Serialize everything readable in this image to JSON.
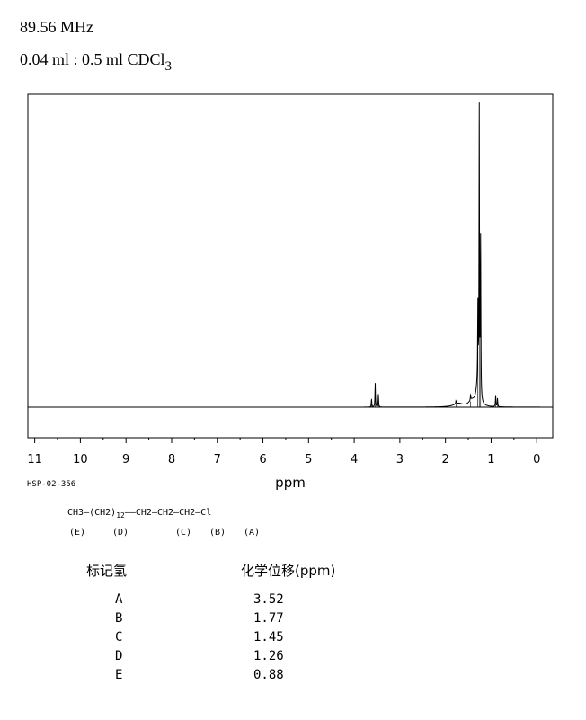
{
  "header": {
    "frequency": "89.56 MHz",
    "sample_main": "0.04 ml : 0.5 ml CDCl",
    "sample_sub": "3"
  },
  "chart_data": {
    "type": "line",
    "title": "",
    "xlabel": "ppm",
    "ylabel": "",
    "xlim": [
      11,
      0
    ],
    "x_ticks": [
      11,
      10,
      9,
      8,
      7,
      6,
      5,
      4,
      3,
      2,
      1,
      0
    ],
    "x_tick_labels": [
      "11",
      "10",
      "9",
      "8",
      "7",
      "6",
      "5",
      "4",
      "3",
      "2",
      "1",
      "0"
    ],
    "grid": false,
    "peaks": [
      {
        "ppm": 3.62,
        "height": 0.03
      },
      {
        "ppm": 3.54,
        "height": 0.085
      },
      {
        "ppm": 3.47,
        "height": 0.045
      },
      {
        "ppm": 1.77,
        "height": 0.012
      },
      {
        "ppm": 1.45,
        "height": 0.02
      },
      {
        "ppm": 1.29,
        "height": 0.28
      },
      {
        "ppm": 1.26,
        "height": 1.0
      },
      {
        "ppm": 1.23,
        "height": 0.55
      },
      {
        "ppm": 0.9,
        "height": 0.04
      },
      {
        "ppm": 0.86,
        "height": 0.03
      }
    ]
  },
  "spectrum_code": "HSP-02-356",
  "structure": {
    "groups": [
      "CH3",
      "(CH2)",
      "CH2",
      "CH2",
      "CH2",
      "Cl"
    ],
    "repeat": "12",
    "labels": [
      "(E)",
      "(D)",
      "(C)",
      "(B)",
      "(A)"
    ]
  },
  "table": {
    "header_label": "标记氢",
    "header_shift": "化学位移(ppm)",
    "rows": [
      {
        "label": "A",
        "shift": "3.52"
      },
      {
        "label": "B",
        "shift": "1.77"
      },
      {
        "label": "C",
        "shift": "1.45"
      },
      {
        "label": "D",
        "shift": "1.26"
      },
      {
        "label": "E",
        "shift": "0.88"
      }
    ]
  }
}
